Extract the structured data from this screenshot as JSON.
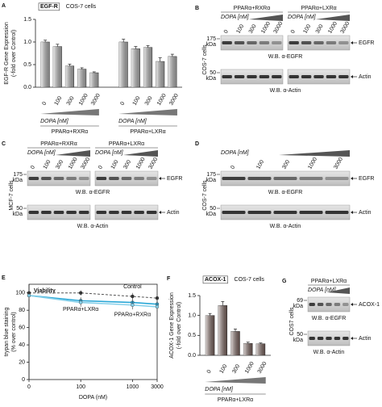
{
  "chart_data": [
    {
      "panel": "A",
      "type": "bar",
      "badge": "EGF-R",
      "title": "COS-7 cells",
      "y_label": [
        "EGF-R Gene Expression",
        "(-fold over Control)"
      ],
      "ylim": [
        0,
        1.5
      ],
      "yticks": [
        {
          "value": 0,
          "label": "0.0"
        },
        {
          "value": 0.5,
          "label": "0.5"
        },
        {
          "value": 1,
          "label": "1.0"
        },
        {
          "value": 1.5,
          "label": "1.5"
        }
      ],
      "dose_label": "DOPA [nM]",
      "color": "#c8c8c8",
      "groups": [
        {
          "name": "PPARα+RXRα",
          "categories": [
            "0",
            "100",
            "300",
            "1000",
            "3000"
          ],
          "values": [
            1.0,
            0.9,
            0.47,
            0.4,
            0.32
          ],
          "errors": [
            0.04,
            0.05,
            0.04,
            0.03,
            0.02
          ]
        },
        {
          "name": "PPARα+LXRα",
          "categories": [
            "0",
            "100",
            "300",
            "1000",
            "3000"
          ],
          "values": [
            1.0,
            0.85,
            0.88,
            0.57,
            0.68
          ],
          "errors": [
            0.06,
            0.05,
            0.04,
            0.08,
            0.05
          ]
        }
      ]
    },
    {
      "panel": "E",
      "type": "line",
      "title": "Viability",
      "y_label": [
        "trypan blue staining",
        "(% over control)"
      ],
      "x_label": "DOPA (nM)",
      "x_scale": "log",
      "x": [
        0,
        100,
        1000,
        3000
      ],
      "xlim": [
        0,
        3000
      ],
      "xticks": [
        0,
        100,
        1000,
        3000
      ],
      "ylim": [
        0,
        110
      ],
      "yticks": [
        0,
        20,
        40,
        60,
        80,
        100
      ],
      "series": [
        {
          "name": "Control",
          "color": "#555555",
          "values": [
            100,
            100,
            96,
            94
          ],
          "errors": [
            3,
            3,
            4,
            4
          ]
        },
        {
          "name": "PPARα+LXRα",
          "color": "#2aa7d6",
          "values": [
            97,
            91,
            89,
            87
          ],
          "errors": [
            4,
            4,
            5,
            5
          ]
        },
        {
          "name": "PPARα+RXRα",
          "color": "#86d0ea",
          "values": [
            97,
            89,
            86,
            84
          ],
          "errors": [
            4,
            5,
            5,
            6
          ]
        }
      ]
    },
    {
      "panel": "F",
      "type": "bar",
      "badge": "ACOX-1",
      "title": "COS-7 cells",
      "y_label": [
        "ACOX-1 Gene Expression",
        "(-fold over Control)"
      ],
      "ylim": [
        0,
        1.5
      ],
      "yticks": [
        {
          "value": 0,
          "label": "0.0"
        },
        {
          "value": 0.5,
          "label": "0.5"
        },
        {
          "value": 1,
          "label": "1.0"
        },
        {
          "value": 1.5,
          "label": "1.5"
        }
      ],
      "dose_label": "DOPA [nM]",
      "color": "#8a706a",
      "groups": [
        {
          "name": "PPARα+LXRα",
          "categories": [
            "0",
            "100",
            "300",
            "1000",
            "3000"
          ],
          "values": [
            1.0,
            1.25,
            0.6,
            0.3,
            0.29
          ],
          "errors": [
            0.05,
            0.1,
            0.06,
            0.03,
            0.02
          ]
        }
      ]
    }
  ],
  "blots": [
    {
      "panel": "B",
      "side_label": "COS-7 cells",
      "groups": [
        {
          "name": "PPARα+RXRα",
          "dose_label": "DOPA [nM]",
          "lanes": [
            "0",
            "100",
            "300",
            "1000",
            "3000"
          ]
        },
        {
          "name": "PPARα+LXRα",
          "dose_label": "DOPA [nM]",
          "lanes": [
            "0",
            "100",
            "300",
            "1000",
            "3000"
          ]
        }
      ],
      "rows": [
        {
          "marker": "175",
          "unit": "kDa",
          "band": "EGFR",
          "caption": "W.B. α-EGFR"
        },
        {
          "marker": "50",
          "unit": "kDa",
          "band": "Actin",
          "caption": "W.B. α-Actin"
        }
      ]
    },
    {
      "panel": "C",
      "side_label": "MCF-7 cells",
      "groups": [
        {
          "name": "PPARα+RXRα",
          "dose_label": "DOPA [nM]",
          "lanes": [
            "0",
            "100",
            "300",
            "1000",
            "3000"
          ]
        },
        {
          "name": "PPARα+LXRα",
          "dose_label": "DOPA [nM]",
          "lanes": [
            "0",
            "100",
            "300",
            "1000",
            "3000"
          ]
        }
      ],
      "rows": [
        {
          "marker": "175",
          "unit": "kDa",
          "band": "EGFR",
          "caption": "W.B. α-EGFR"
        },
        {
          "marker": "50",
          "unit": "kDa",
          "band": "Actin",
          "caption": "W.B. α-Actin"
        }
      ]
    },
    {
      "panel": "D",
      "side_label": "COS-7 cells",
      "groups": [
        {
          "dose_label": "DOPA [nM]",
          "lanes": [
            "0",
            "100",
            "300",
            "1000",
            "3000"
          ]
        }
      ],
      "rows": [
        {
          "marker": "175",
          "unit": "kDa",
          "band": "EGFR",
          "caption": "W.B. α-EGFR"
        },
        {
          "marker": "50",
          "unit": "kDa",
          "band": "Actin",
          "caption": "W.B. α-Actin"
        }
      ]
    },
    {
      "panel": "G",
      "side_label": "COS7 cells",
      "groups": [
        {
          "name": "PPARα+LXRα",
          "dose_label": "DOPA [nM]"
        }
      ],
      "rows": [
        {
          "marker": "69",
          "unit": "kDa",
          "band": "ACOX-1",
          "caption": "W.B. α-EGFR"
        },
        {
          "marker": "50",
          "unit": "kDa",
          "band": "Actin",
          "caption": "W.B. α-Actin"
        }
      ]
    }
  ]
}
